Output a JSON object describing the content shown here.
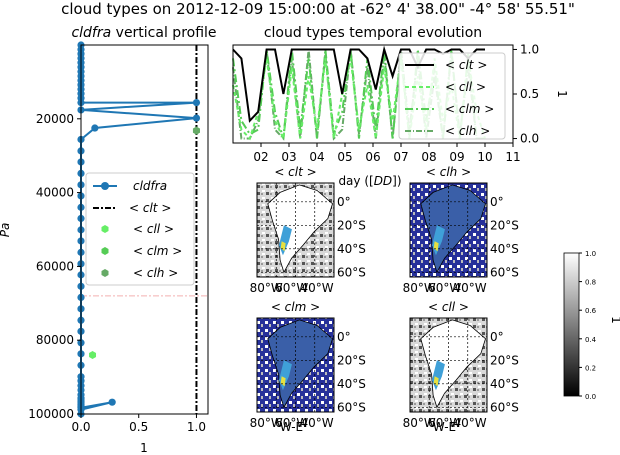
{
  "figure": {
    "suptitle": "cloud types on 2012-12-09 15:00:00 at -62°  4' 38.00\"  -4° 58' 55.51\""
  },
  "chart_data": [
    {
      "type": "line",
      "name": "profile",
      "title": "cldfra vertical profile",
      "title_italic": "cldfra",
      "title_rest": " vertical profile",
      "xlabel": "1",
      "ylabel": "Pa",
      "xlim": [
        0,
        1.1
      ],
      "ylim": [
        100000,
        0
      ],
      "xticks": [
        0.0,
        0.5,
        1.0
      ],
      "xtick_labels": [
        "0.0",
        "0.5",
        "1.0"
      ],
      "yticks": [
        20000,
        40000,
        60000,
        80000,
        100000
      ],
      "ytick_labels": [
        "20000",
        "40000",
        "60000",
        "80000",
        "100000"
      ],
      "cldfra": {
        "x": [
          0,
          0,
          0,
          0,
          0,
          0,
          0,
          0,
          0,
          0,
          0,
          0,
          0,
          0,
          1.0,
          0,
          1.0,
          0.12,
          0,
          0,
          0,
          0,
          0,
          0,
          0,
          0,
          0,
          0,
          0,
          0,
          0,
          0,
          0,
          0,
          0,
          0,
          0,
          0,
          0,
          0,
          0,
          0,
          0,
          0,
          0,
          0,
          0,
          0,
          0,
          0,
          0,
          0,
          0,
          0.27,
          0,
          0
        ],
        "y": [
          0,
          1200,
          2400,
          3600,
          4800,
          6000,
          7200,
          8400,
          9600,
          10800,
          12000,
          13200,
          14400,
          15600,
          15600,
          17600,
          19800,
          22500,
          25600,
          28700,
          31700,
          34800,
          37900,
          40900,
          44000,
          47000,
          50100,
          53100,
          56200,
          59300,
          62300,
          65400,
          68400,
          71500,
          74600,
          77600,
          80700,
          83700,
          86800,
          89900,
          91000,
          92300,
          93500,
          94800,
          95700,
          96200,
          96600,
          97000,
          97400,
          97700,
          97900,
          98100,
          98300,
          96800,
          98800,
          100000
        ]
      },
      "clt_line_x": 1.0,
      "cll_points": [
        {
          "x": 0.1,
          "y": 84000
        }
      ],
      "clm_points": [
        {
          "x": 1.0,
          "y": 23200
        }
      ],
      "clh_points": [
        {
          "x": 1.0,
          "y": 23200
        }
      ],
      "reference_lines": {
        "horizontal_y": 68000,
        "color": "#f4b0b0"
      },
      "legend": {
        "placement": "center-left",
        "entries": [
          {
            "key": "cldfra",
            "label": "cldfra",
            "italic": true,
            "style": "line-marker",
            "color": "#1f77b4"
          },
          {
            "key": "clt",
            "label": "< clt >",
            "style": "dashdot",
            "color": "#000000"
          },
          {
            "key": "cll",
            "label": "< cll >",
            "style": "hexagon",
            "color": "#66ee66"
          },
          {
            "key": "clm",
            "label": "< clm >",
            "style": "hexagon",
            "color": "#55cc55"
          },
          {
            "key": "clh",
            "label": "< clh >",
            "style": "hexagon",
            "color": "#66aa66"
          }
        ]
      }
    },
    {
      "type": "line",
      "name": "temporal",
      "title": "cloud types temporal evolution",
      "xlabel": "day ([DD])",
      "xlabel_plain": "day ([",
      "xlabel_italic": "DD",
      "xlabel_end": "])",
      "ylabel": "1",
      "xlim": [
        1.0,
        11.0
      ],
      "ylim": [
        -0.05,
        1.05
      ],
      "xticks": [
        2,
        3,
        4,
        5,
        6,
        7,
        8,
        9,
        10,
        11
      ],
      "xtick_labels": [
        "02",
        "03",
        "04",
        "05",
        "06",
        "07",
        "08",
        "09",
        "10",
        "11"
      ],
      "yticks": [
        0.0,
        0.5,
        1.0
      ],
      "ytick_labels": [
        "0.0",
        "0.5",
        "1.0"
      ],
      "series": [
        {
          "name": "< clt >",
          "color": "#000000",
          "dash": "solid",
          "x": [
            1.0,
            1.3,
            1.6,
            1.9,
            2.2,
            2.5,
            2.8,
            3.1,
            3.4,
            3.7,
            4.0,
            4.3,
            4.6,
            4.9,
            5.2,
            5.5,
            5.8,
            6.1,
            6.4,
            6.7,
            7.0,
            7.3,
            7.6,
            7.9,
            8.2,
            8.5,
            8.8,
            9.1,
            9.4,
            9.7,
            10.0
          ],
          "y": [
            1.0,
            0.9,
            0.2,
            0.3,
            1.0,
            1.0,
            0.5,
            1.0,
            1.0,
            1.0,
            1.0,
            1.0,
            1.0,
            0.5,
            1.0,
            1.0,
            0.9,
            0.55,
            1.0,
            0.7,
            1.0,
            1.0,
            0.8,
            1.0,
            1.0,
            0.95,
            1.0,
            1.0,
            0.9,
            1.0,
            1.0
          ]
        },
        {
          "name": "< cll >",
          "color": "#66ee66",
          "dash": "4 3",
          "x": [
            1.0,
            1.3,
            1.6,
            1.9,
            2.2,
            2.5,
            2.8,
            3.1,
            3.4,
            3.7,
            4.0,
            4.3,
            4.6,
            4.9,
            5.2,
            5.5,
            5.8,
            6.1,
            6.4,
            6.7,
            7.0,
            7.3,
            7.6,
            7.9,
            8.2,
            8.5,
            8.8,
            9.1,
            9.4,
            9.7,
            10.0
          ],
          "y": [
            0.6,
            0.1,
            0.0,
            0.3,
            0.9,
            0.2,
            0.0,
            0.8,
            0.0,
            0.7,
            0.1,
            0.9,
            0.0,
            0.5,
            0.9,
            0.1,
            0.6,
            0.0,
            0.8,
            0.2,
            0.9,
            0.0,
            0.7,
            0.1,
            0.9,
            0.2,
            0.6,
            0.0,
            0.9,
            0.3,
            0.0
          ]
        },
        {
          "name": "< clm >",
          "color": "#55cc55",
          "dash": "8 3 2 3",
          "x": [
            1.0,
            1.3,
            1.6,
            1.9,
            2.2,
            2.5,
            2.8,
            3.1,
            3.4,
            3.7,
            4.0,
            4.3,
            4.6,
            4.9,
            5.2,
            5.5,
            5.8,
            6.1,
            6.4,
            6.7,
            7.0,
            7.3,
            7.6,
            7.9,
            8.2,
            8.5,
            8.8,
            9.1,
            9.4,
            9.7,
            10.0
          ],
          "y": [
            0.9,
            0.2,
            0.05,
            0.1,
            1.0,
            0.3,
            0.0,
            1.0,
            0.1,
            0.9,
            0.0,
            1.0,
            0.05,
            0.3,
            1.0,
            0.0,
            0.9,
            0.1,
            1.0,
            0.0,
            0.95,
            0.0,
            1.0,
            0.2,
            0.8,
            0.0,
            1.0,
            0.0,
            0.95,
            0.0,
            0.0
          ]
        },
        {
          "name": "< clh >",
          "color": "#66aa66",
          "dash": "6 2 1 2",
          "x": [
            1.0,
            1.3,
            1.6,
            1.9,
            2.2,
            2.5,
            2.8,
            3.1,
            3.4,
            3.7,
            4.0,
            4.3,
            4.6,
            4.9,
            5.2,
            5.5,
            5.8,
            6.1,
            6.4,
            6.7,
            7.0,
            7.3,
            7.6,
            7.9,
            8.2,
            8.5,
            8.8,
            9.1,
            9.4,
            9.7,
            10.0
          ],
          "y": [
            0.8,
            0.0,
            0.0,
            0.2,
            1.0,
            0.1,
            0.0,
            0.9,
            0.0,
            1.0,
            0.0,
            0.95,
            0.0,
            0.1,
            1.0,
            0.05,
            0.8,
            0.0,
            0.95,
            0.0,
            1.0,
            0.1,
            0.9,
            0.0,
            0.7,
            0.0,
            0.95,
            0.05,
            0.8,
            0.0,
            0.0
          ]
        }
      ],
      "legend": {
        "placement": "upper-right"
      }
    },
    {
      "type": "heatmap",
      "name": "maps",
      "panels": [
        {
          "title": "< clt >",
          "xticks": [
            "80°W",
            "60°W",
            "40°W"
          ],
          "yticks": [
            "0°",
            "20°S",
            "40°S",
            "60°S"
          ],
          "ocean": "#ffffff"
        },
        {
          "title": "< clh >",
          "xticks": [
            "80°W",
            "60°W",
            "40°W"
          ],
          "yticks": [
            "0°",
            "20°S",
            "40°S",
            "60°S"
          ],
          "ocean": "#26309a"
        },
        {
          "title": "< clm >",
          "xticks": [
            "80°W",
            "60°W",
            "40°W"
          ],
          "yticks": [
            "0°",
            "20°S",
            "40°S",
            "60°S"
          ],
          "ocean": "#26309a"
        },
        {
          "title": "< cll >",
          "xticks": [
            "80°W",
            "60°W",
            "40°W"
          ],
          "yticks": [
            "0°",
            "20°S",
            "40°S",
            "60°S"
          ],
          "ocean": "#ffffff"
        }
      ],
      "x_axis_label": "W-E",
      "colorbar": {
        "ticks": [
          "0.0",
          "0.2",
          "0.4",
          "0.6",
          "0.8",
          "1.0"
        ],
        "label": "1",
        "range": [
          0,
          1
        ],
        "colors": [
          "#000000",
          "#ffffff"
        ]
      }
    }
  ]
}
